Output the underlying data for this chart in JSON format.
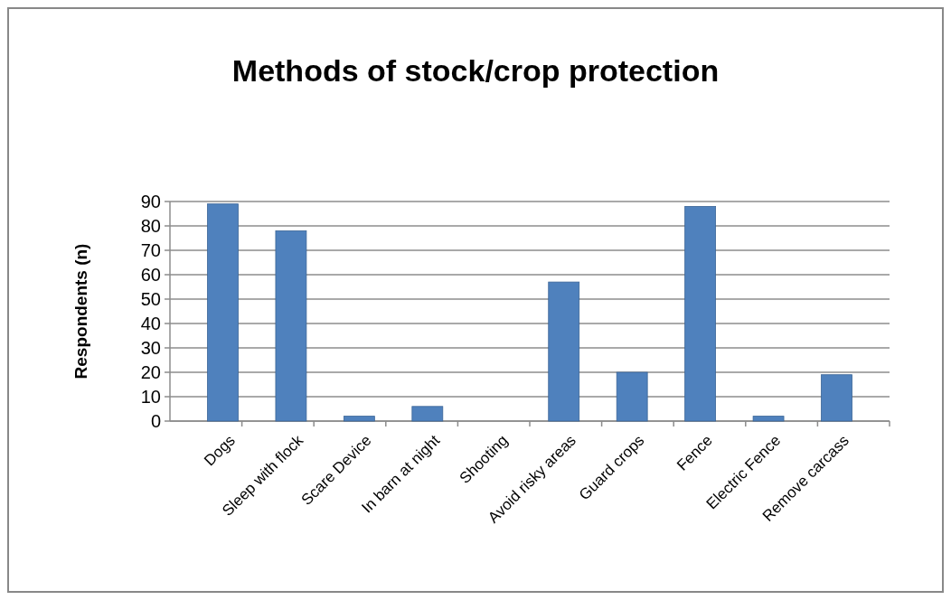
{
  "chart_data": {
    "type": "bar",
    "title": "Methods of stock/crop protection",
    "ylabel": "Respondents (n)",
    "categories": [
      "Dogs",
      "Sleep with flock",
      "Scare Device",
      "In barn at night",
      "Shooting",
      "Avoid risky areas",
      "Guard crops",
      "Fence",
      "Electric Fence",
      "Remove carcass"
    ],
    "values": [
      89,
      78,
      2,
      6,
      0,
      57,
      20,
      88,
      2,
      19
    ],
    "color": "#4f81bd",
    "ylim": [
      0,
      90
    ],
    "yticks": [
      0,
      10,
      20,
      30,
      40,
      50,
      60,
      70,
      80,
      90
    ],
    "grid": "y"
  }
}
